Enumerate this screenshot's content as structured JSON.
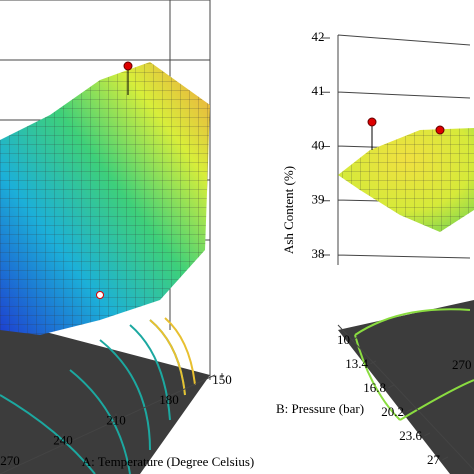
{
  "chart_data": [
    {
      "type": "surface3d",
      "xlabel": "A: Temperature (Degree Celsius)",
      "xlim": [
        150,
        270
      ],
      "xticks": [
        150,
        180,
        210,
        240,
        270
      ]
    },
    {
      "type": "surface3d",
      "zlabel": "Ash Content (%)",
      "zlim": [
        38,
        42
      ],
      "zticks": [
        38,
        39,
        40,
        41,
        42
      ],
      "ylabel": "B: Pressure (bar)",
      "ylim": [
        10,
        27
      ],
      "yticks": [
        10,
        13.4,
        16.8,
        20.2,
        23.6,
        27
      ],
      "xticks": [
        270
      ]
    }
  ]
}
